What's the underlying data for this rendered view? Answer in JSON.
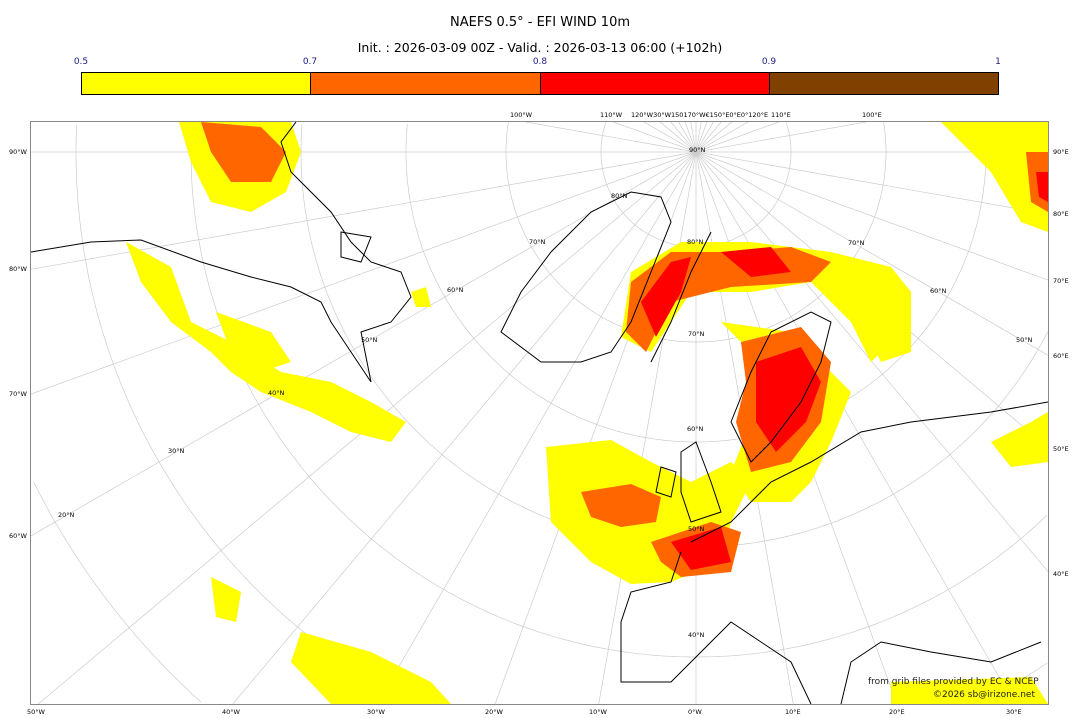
{
  "title": "NAEFS 0.5° - EFI WIND 10m",
  "subtitle": "Init. : 2026-03-09 00Z - Valid. : 2026-03-13 06:00 (+102h)",
  "colorbar": {
    "ticks": [
      "0.5",
      "0.7",
      "0.8",
      "0.9",
      "1"
    ],
    "colors": [
      "#ffff00",
      "#ff6600",
      "#ff0000",
      "#804000"
    ]
  },
  "map": {
    "projection": "polar stereographic",
    "colors": {
      "coast": "#000000",
      "graticule": "#cccccc",
      "frame": "#888888"
    },
    "left_labels": [
      "90°W",
      "80°W",
      "70°W",
      "60°W"
    ],
    "bottom_labels": [
      "50°W",
      "40°W",
      "30°W",
      "20°W",
      "10°W",
      "0°W",
      "10°E",
      "20°E",
      "30°E"
    ],
    "right_labels": [
      "90°E",
      "80°E",
      "70°E",
      "60°E",
      "50°E",
      "40°E"
    ],
    "top_labels": [
      "100°W",
      "110°W",
      "120°W30°W150170°W€150°E0°E0°120°E",
      "110°E",
      "100°E"
    ],
    "lat_labels": [
      "90°N",
      "80°N",
      "70°N",
      "60°N",
      "50°N",
      "40°N",
      "30°N",
      "20°N",
      "80°N",
      "70°N",
      "60°N",
      "50°N",
      "70°N",
      "60°N",
      "50°N",
      "40°N"
    ]
  },
  "credits": {
    "line1": "from grib files provided by EC & NCEP",
    "line2": "©2026 sb@irizone.net"
  }
}
